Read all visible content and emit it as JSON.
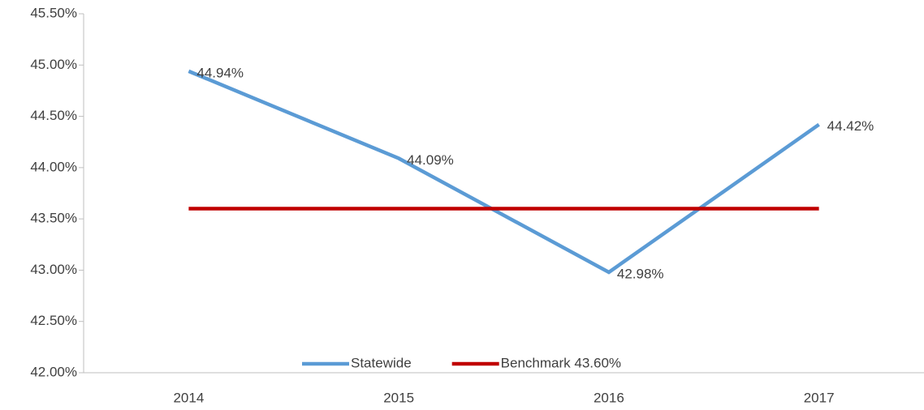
{
  "chart_data": {
    "type": "line",
    "categories": [
      "2014",
      "2015",
      "2016",
      "2017"
    ],
    "series": [
      {
        "name": "Statewide",
        "color": "#5b9bd5",
        "values": [
          44.94,
          44.09,
          42.98,
          44.42
        ],
        "value_labels": [
          "44.94%",
          "44.09%",
          "42.98%",
          "44.42%"
        ]
      },
      {
        "name": "Benchmark 43.60%",
        "color": "#c00000",
        "values": [
          43.6,
          43.6,
          43.6,
          43.6
        ]
      }
    ],
    "ylim": [
      42,
      45.5
    ],
    "yticks": [
      {
        "value": 42,
        "label": "42.00%"
      },
      {
        "value": 42.5,
        "label": "42.50%"
      },
      {
        "value": 43,
        "label": "43.00%"
      },
      {
        "value": 43.5,
        "label": "43.50%"
      },
      {
        "value": 44,
        "label": "44.00%"
      },
      {
        "value": 44.5,
        "label": "44.50%"
      },
      {
        "value": 45,
        "label": "45.00%"
      },
      {
        "value": 45.5,
        "label": "45.50%"
      }
    ],
    "grid": false,
    "legend": "bottom"
  }
}
